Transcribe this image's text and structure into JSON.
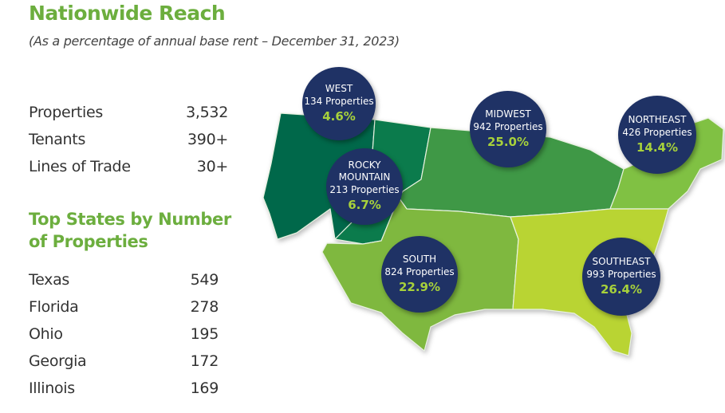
{
  "header": {
    "title": "Nationwide Reach",
    "subtitle": "(As a percentage of annual base rent – December 31, 2023)"
  },
  "stats": [
    {
      "label": "Properties",
      "value": "3,532"
    },
    {
      "label": "Tenants",
      "value": "390+"
    },
    {
      "label": "Lines of Trade",
      "value": "30+"
    }
  ],
  "top_states": {
    "title": "Top States by Number of Properties",
    "items": [
      {
        "state": "Texas",
        "count": "549"
      },
      {
        "state": "Florida",
        "count": "278"
      },
      {
        "state": "Ohio",
        "count": "195"
      },
      {
        "state": "Georgia",
        "count": "172"
      },
      {
        "state": "Illinois",
        "count": "169"
      }
    ]
  },
  "regions": [
    {
      "name": "WEST",
      "properties": "134 Properties",
      "percent": "4.6%",
      "color": "#00684a"
    },
    {
      "name": "ROCKY MOUNTAIN",
      "properties": "213 Properties",
      "percent": "6.7%",
      "color": "#0b7b4c"
    },
    {
      "name": "MIDWEST",
      "properties": "942 Properties",
      "percent": "25.0%",
      "color": "#3f9846"
    },
    {
      "name": "NORTHEAST",
      "properties": "426 Properties",
      "percent": "14.4%",
      "color": "#80c143"
    },
    {
      "name": "SOUTH",
      "properties": "824 Properties",
      "percent": "22.9%",
      "color": "#7fb83f"
    },
    {
      "name": "SOUTHEAST",
      "properties": "993 Properties",
      "percent": "26.4%",
      "color": "#b9d433"
    }
  ],
  "colors": {
    "accent": "#6cae3e",
    "bubble": "#1f3265",
    "percent": "#a7d13b"
  }
}
